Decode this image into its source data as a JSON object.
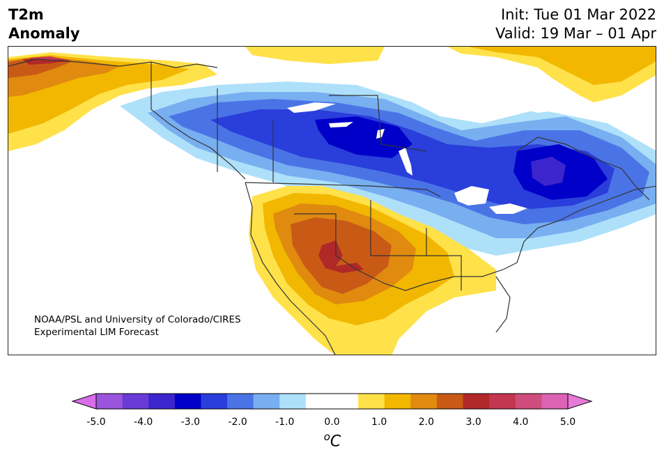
{
  "title": {
    "line1": "T2m",
    "line2": "Anomaly"
  },
  "dates": {
    "init": "Init: Tue 01 Mar 2022",
    "valid": "Valid: 19 Mar – 01 Apr"
  },
  "credit": {
    "line1": "NOAA/PSL and University of Colorado/CIRES",
    "line2": "Experimental LIM Forecast"
  },
  "colorbar": {
    "unit_base": "C",
    "unit_sup": "o",
    "ticks": [
      "-5.0",
      "-4.0",
      "-3.0",
      "-2.0",
      "-1.0",
      "0.0",
      "1.0",
      "2.0",
      "3.0",
      "4.0",
      "5.0"
    ],
    "bins": [
      "#9b55dc",
      "#6a3ad6",
      "#3c25cc",
      "#0000c8",
      "#2a3edb",
      "#4a74e6",
      "#78aff0",
      "#aee0fa",
      "#ffffff",
      "#ffffff",
      "#ffe14a",
      "#f2b700",
      "#e08a10",
      "#c95a16",
      "#b02828",
      "#c23650",
      "#cf4d7d",
      "#dc62b4"
    ],
    "low_extend": "#d76ee8",
    "high_extend": "#e77ad8"
  },
  "palette": {
    "ocean": "#ffffff",
    "border": "#333333",
    "warm1": "#ffe14a",
    "warm2": "#f2b700",
    "warm3": "#e08a10",
    "warm4": "#c95a16",
    "warm5": "#b02828",
    "warm6": "#c23650",
    "cool1": "#aee0fa",
    "cool2": "#78aff0",
    "cool3": "#4a74e6",
    "cool4": "#2a3edb",
    "cool5": "#0000c8",
    "cool6": "#3c25cc"
  }
}
